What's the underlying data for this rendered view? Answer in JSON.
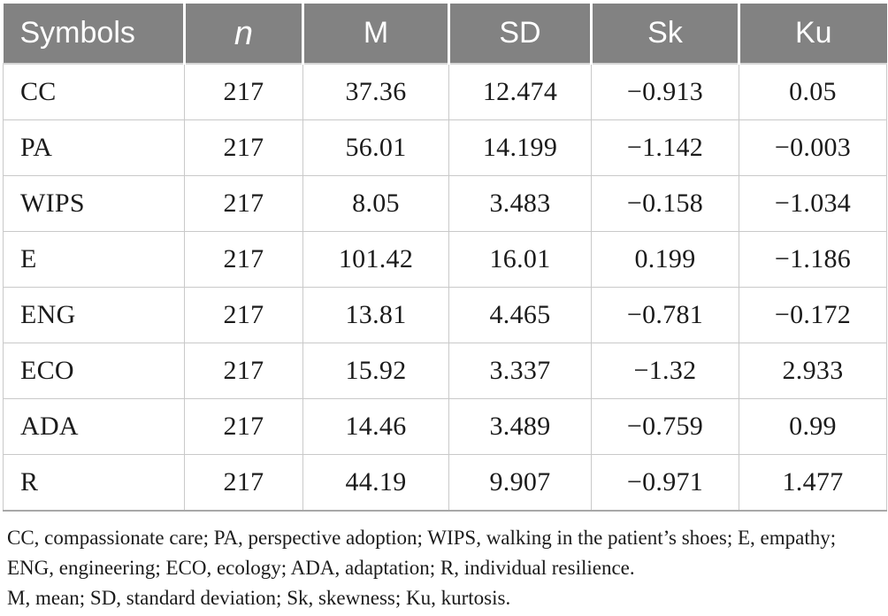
{
  "table": {
    "columns": [
      "Symbols",
      "n",
      "M",
      "SD",
      "Sk",
      "Ku"
    ],
    "rows": [
      [
        "CC",
        "217",
        "37.36",
        "12.474",
        "−0.913",
        "0.05"
      ],
      [
        "PA",
        "217",
        "56.01",
        "14.199",
        "−1.142",
        "−0.003"
      ],
      [
        "WIPS",
        "217",
        "8.05",
        "3.483",
        "−0.158",
        "−1.034"
      ],
      [
        "E",
        "217",
        "101.42",
        "16.01",
        "0.199",
        "−1.186"
      ],
      [
        "ENG",
        "217",
        "13.81",
        "4.465",
        "−0.781",
        "−0.172"
      ],
      [
        "ECO",
        "217",
        "15.92",
        "3.337",
        "−1.32",
        "2.933"
      ],
      [
        "ADA",
        "217",
        "14.46",
        "3.489",
        "−0.759",
        "0.99"
      ],
      [
        "R",
        "217",
        "44.19",
        "9.907",
        "−0.971",
        "1.477"
      ]
    ]
  },
  "footnotes": [
    "CC, compassionate care; PA, perspective adoption; WIPS, walking in the patient’s shoes; E, empathy; ENG, engineering; ECO, ecology; ADA, adaptation; R, individual resilience.",
    "M, mean; SD, standard deviation; Sk, skewness; Ku, kurtosis."
  ],
  "colors": {
    "header_bg": "#828282",
    "header_text": "#ffffff",
    "body_text": "#1b1b1b",
    "grid_line": "#c9c9c9"
  }
}
